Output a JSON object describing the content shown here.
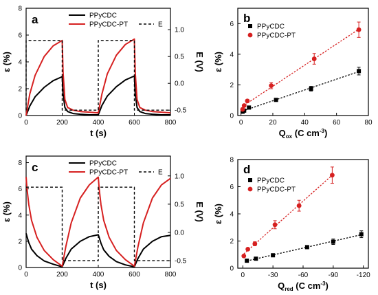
{
  "colors": {
    "black": "#000000",
    "red": "#d62020"
  },
  "panels": [
    {
      "id": "a",
      "label": "a",
      "kind": "time",
      "xlabel": "t (s)",
      "ylabel": "ε (%)",
      "y2label": "E (V)",
      "xlim": [
        0,
        800
      ],
      "ylim": [
        0,
        8
      ],
      "y2lim": [
        -0.6,
        1.4
      ],
      "xticks": [
        "0",
        "200",
        "400",
        "600",
        "800"
      ],
      "yticks": [
        "0",
        "2",
        "4",
        "6",
        "8"
      ],
      "y2ticks": [
        "-0.5",
        "0.0",
        "0.5",
        "1.0"
      ],
      "legend": {
        "s1": "PPyCDC",
        "s2": "PPyCDC-PT",
        "e": "E"
      }
    },
    {
      "id": "b",
      "label": "b",
      "kind": "scatter",
      "xlabel_main": "Q",
      "xlabel_sub": "ox",
      "xlabel_unit": " (C cm",
      "xlabel_sup": "-3",
      "xlabel_end": ")",
      "ylabel": "ε (%)",
      "xlim": [
        -2,
        80
      ],
      "ylim": [
        0,
        7
      ],
      "xticks": [
        "0",
        "20",
        "40",
        "60",
        "80"
      ],
      "yticks": [
        "0",
        "2",
        "4",
        "6"
      ],
      "legend": {
        "s1": "PPyCDC",
        "s2": "PPyCDC-PT"
      }
    },
    {
      "id": "c",
      "label": "c",
      "kind": "time",
      "xlabel": "t (s)",
      "ylabel": "ε (%)",
      "y2label": "E (V)",
      "xlim": [
        0,
        800
      ],
      "ylim": [
        0,
        8.5
      ],
      "y2lim": [
        -0.62,
        1.35
      ],
      "xticks": [
        "0",
        "200",
        "400",
        "600",
        "800"
      ],
      "yticks": [
        "0",
        "2",
        "4",
        "6",
        "8"
      ],
      "y2ticks": [
        "-0.5",
        "0.0",
        "0.5",
        "1.0"
      ],
      "legend": {
        "s1": "PPyCDC",
        "s2": "PPyCDC-PT",
        "e": "E"
      }
    },
    {
      "id": "d",
      "label": "d",
      "kind": "scatter",
      "xlabel_main": "Q",
      "xlabel_sub": "red",
      "xlabel_unit": " (C cm",
      "xlabel_sup": "-3",
      "xlabel_end": ")",
      "ylabel": "ε (%)",
      "xlim": [
        5,
        -125
      ],
      "ylim": [
        0,
        8
      ],
      "xticks": [
        "0",
        "-30",
        "-60",
        "-90",
        "-120"
      ],
      "yticks": [
        "0",
        "2",
        "4",
        "6",
        "8"
      ],
      "legend": {
        "s1": "PPyCDC",
        "s2": "PPyCDC-PT"
      }
    }
  ],
  "chart_data": [
    {
      "panel": "a",
      "type": "line",
      "x_unit": "s",
      "series": [
        {
          "name": "PPyCDC",
          "color": "#000000",
          "x": [
            0,
            20,
            50,
            100,
            150,
            200,
            205,
            215,
            230,
            260,
            300,
            350,
            400,
            420,
            450,
            500,
            550,
            600,
            605,
            615,
            630,
            660,
            700,
            750,
            800
          ],
          "y": [
            0,
            0.7,
            1.4,
            2.1,
            2.6,
            2.9,
            1.6,
            0.6,
            0.3,
            0.15,
            0.1,
            0.05,
            0.05,
            0.75,
            1.45,
            2.15,
            2.65,
            2.95,
            1.6,
            0.6,
            0.3,
            0.15,
            0.1,
            0.05,
            0.05
          ]
        },
        {
          "name": "PPyCDC-PT",
          "color": "#d62020",
          "x": [
            0,
            20,
            50,
            100,
            150,
            200,
            205,
            215,
            230,
            260,
            300,
            350,
            400,
            420,
            450,
            500,
            550,
            600,
            605,
            615,
            630,
            660,
            700,
            750,
            800
          ],
          "y": [
            0,
            1.6,
            3.0,
            4.4,
            5.2,
            5.6,
            3.2,
            1.2,
            0.6,
            0.4,
            0.3,
            0.25,
            0.2,
            1.6,
            3.1,
            4.5,
            5.3,
            5.7,
            3.2,
            1.2,
            0.6,
            0.4,
            0.3,
            0.25,
            0.2
          ]
        },
        {
          "name": "E",
          "axis": "right",
          "dashed": true,
          "x": [
            0,
            0,
            200,
            200,
            400,
            400,
            600,
            600,
            800
          ],
          "y": [
            -0.5,
            0.8,
            0.8,
            -0.5,
            -0.5,
            0.8,
            0.8,
            -0.5,
            -0.5
          ]
        }
      ]
    },
    {
      "panel": "b",
      "type": "scatter",
      "series": [
        {
          "name": "PPyCDC",
          "color": "#000000",
          "marker": "square",
          "x": [
            1,
            2,
            5,
            22,
            44,
            74
          ],
          "y": [
            0.25,
            0.32,
            0.52,
            1.02,
            1.75,
            2.9
          ],
          "err": [
            0.05,
            0.05,
            0.06,
            0.08,
            0.15,
            0.25
          ]
        },
        {
          "name": "PPyCDC-PT",
          "color": "#d62020",
          "marker": "circle",
          "x": [
            1,
            2,
            4,
            19,
            46,
            74
          ],
          "y": [
            0.4,
            0.65,
            0.95,
            1.95,
            3.7,
            5.6
          ],
          "err": [
            0.05,
            0.08,
            0.1,
            0.2,
            0.35,
            0.5
          ]
        }
      ]
    },
    {
      "panel": "c",
      "type": "line",
      "x_unit": "s",
      "series": [
        {
          "name": "PPyCDC",
          "color": "#000000",
          "x": [
            0,
            5,
            15,
            30,
            60,
            100,
            150,
            200,
            220,
            250,
            300,
            350,
            400,
            405,
            415,
            430,
            460,
            500,
            550,
            600,
            620,
            650,
            700,
            750,
            800
          ],
          "y": [
            2.6,
            2.35,
            1.9,
            1.4,
            0.9,
            0.5,
            0.25,
            0.05,
            0.7,
            1.4,
            2.0,
            2.35,
            2.5,
            2.3,
            1.85,
            1.35,
            0.85,
            0.45,
            0.2,
            0.05,
            0.7,
            1.4,
            2.0,
            2.35,
            2.45
          ]
        },
        {
          "name": "PPyCDC-PT",
          "color": "#d62020",
          "x": [
            0,
            5,
            15,
            30,
            60,
            100,
            150,
            200,
            220,
            250,
            300,
            350,
            400,
            405,
            415,
            430,
            460,
            500,
            550,
            600,
            620,
            650,
            700,
            750,
            800
          ],
          "y": [
            6.9,
            6.0,
            4.8,
            3.6,
            2.3,
            1.3,
            0.6,
            0.1,
            1.6,
            3.4,
            5.3,
            6.3,
            6.9,
            6.0,
            4.8,
            3.6,
            2.3,
            1.3,
            0.6,
            0.1,
            1.6,
            3.4,
            5.3,
            6.3,
            6.8
          ]
        },
        {
          "name": "E",
          "axis": "right",
          "dashed": true,
          "x": [
            0,
            200,
            200,
            400,
            400,
            600,
            600,
            800
          ],
          "y": [
            0.8,
            0.8,
            -0.5,
            -0.5,
            0.8,
            0.8,
            -0.5,
            -0.5
          ]
        }
      ]
    },
    {
      "panel": "d",
      "type": "scatter",
      "series": [
        {
          "name": "PPyCDC",
          "color": "#000000",
          "marker": "square",
          "x": [
            -4,
            -13,
            -30,
            -64,
            -90,
            -118
          ],
          "y": [
            0.55,
            0.7,
            0.95,
            1.55,
            1.95,
            2.5
          ],
          "err": [
            0.06,
            0.08,
            0.08,
            0.12,
            0.2,
            0.25
          ]
        },
        {
          "name": "PPyCDC-PT",
          "color": "#d62020",
          "marker": "circle",
          "x": [
            -1,
            -5,
            -12,
            -32,
            -56,
            -89
          ],
          "y": [
            0.9,
            1.4,
            1.8,
            3.2,
            4.6,
            6.85
          ],
          "err": [
            0.08,
            0.1,
            0.15,
            0.3,
            0.4,
            0.6
          ]
        }
      ]
    }
  ]
}
